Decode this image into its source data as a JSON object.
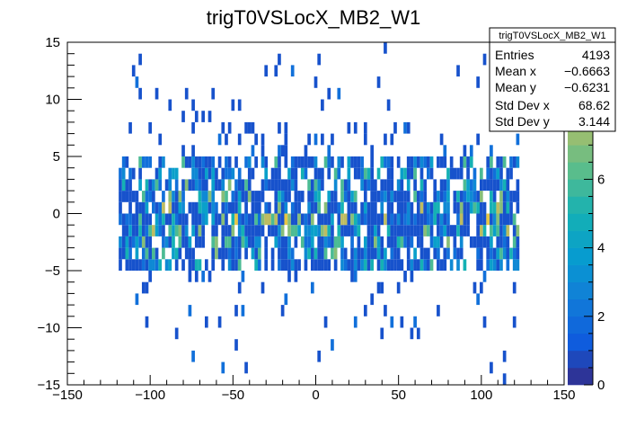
{
  "chart_data": {
    "type": "heatmap",
    "title": "trigT0VSLocX_MB2_W1",
    "xlabel": "",
    "ylabel": "",
    "xlim": [
      -150,
      150
    ],
    "ylim": [
      -15,
      15
    ],
    "x_ticks": [
      -150,
      -100,
      -50,
      0,
      50,
      100,
      150
    ],
    "x_tick_labels": [
      "−150",
      "−100",
      "−50",
      "0",
      "50",
      "100",
      "150"
    ],
    "y_ticks": [
      -15,
      -10,
      -5,
      0,
      5,
      10,
      15
    ],
    "y_tick_labels": [
      "−15",
      "−10",
      "−5",
      "0",
      "5",
      "10",
      "15"
    ],
    "colorbar": {
      "range": [
        0,
        10
      ],
      "ticks": [
        0,
        2,
        4,
        6,
        8
      ],
      "tick_labels": [
        "0",
        "2",
        "4",
        "6",
        "8"
      ]
    },
    "bins": {
      "x_range": [
        -125,
        125
      ],
      "x_bin_width": 2,
      "y_range": [
        -15,
        15
      ],
      "y_bin_width": 1,
      "dense_region_x": [
        -120,
        122
      ],
      "dense_region_y": [
        -5,
        5
      ],
      "peak_count": 10
    },
    "stats": {
      "name": "trigT0VSLocX_MB2_W1",
      "rows": [
        {
          "label": "Entries",
          "value": "4193"
        },
        {
          "label": "Mean x",
          "value": "−0.6663"
        },
        {
          "label": "Mean y",
          "value": "−0.6231"
        },
        {
          "label": "Std Dev x",
          "value": "68.62"
        },
        {
          "label": "Std Dev y",
          "value": "3.144"
        }
      ]
    }
  }
}
